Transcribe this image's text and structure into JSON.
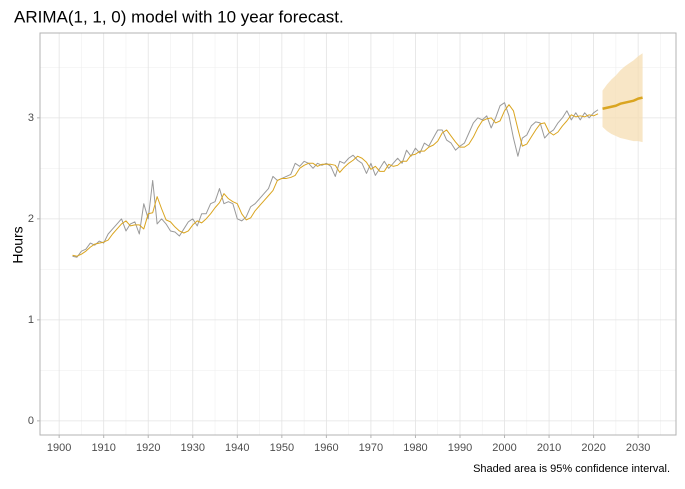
{
  "chart_data": {
    "type": "line",
    "title": "ARIMA(1, 1, 0) model with 10 year forecast.",
    "y_label": "Hours",
    "caption": "Shaded area is 95% confidence interval.",
    "xlim": [
      1895.7,
      2038.5
    ],
    "ylim": [
      -0.14,
      3.84
    ],
    "xticks": [
      1900,
      1910,
      1920,
      1930,
      1940,
      1950,
      1960,
      1970,
      1980,
      1990,
      2000,
      2010,
      2020,
      2030
    ],
    "yticks": [
      0,
      1,
      2,
      3
    ],
    "xminorticks": [
      1905,
      1915,
      1925,
      1935,
      1945,
      1955,
      1965,
      1975,
      1985,
      1995,
      2005,
      2015,
      2025,
      2035
    ],
    "yminorticks": [
      0.5,
      1.5,
      2.5,
      3.5
    ],
    "grid": true,
    "x": [
      1903,
      1904,
      1905,
      1906,
      1907,
      1908,
      1909,
      1910,
      1911,
      1912,
      1913,
      1914,
      1915,
      1916,
      1917,
      1918,
      1919,
      1920,
      1921,
      1922,
      1923,
      1924,
      1925,
      1926,
      1927,
      1928,
      1929,
      1930,
      1931,
      1932,
      1933,
      1934,
      1935,
      1936,
      1937,
      1938,
      1939,
      1940,
      1941,
      1942,
      1943,
      1944,
      1945,
      1946,
      1947,
      1948,
      1949,
      1950,
      1951,
      1952,
      1953,
      1954,
      1955,
      1956,
      1957,
      1958,
      1959,
      1960,
      1961,
      1962,
      1963,
      1964,
      1965,
      1966,
      1967,
      1968,
      1969,
      1970,
      1971,
      1972,
      1973,
      1974,
      1975,
      1976,
      1977,
      1978,
      1979,
      1980,
      1981,
      1982,
      1983,
      1984,
      1985,
      1986,
      1987,
      1988,
      1989,
      1990,
      1991,
      1992,
      1993,
      1994,
      1995,
      1996,
      1997,
      1998,
      1999,
      2000,
      2001,
      2002,
      2003,
      2004,
      2005,
      2006,
      2007,
      2008,
      2009,
      2010,
      2011,
      2012,
      2013,
      2014,
      2015,
      2016,
      2017,
      2018,
      2019,
      2020,
      2021
    ],
    "series": [
      {
        "color": "#9a9a9a",
        "width": 1,
        "values": [
          1.63,
          1.62,
          1.68,
          1.7,
          1.76,
          1.74,
          1.78,
          1.76,
          1.85,
          1.9,
          1.95,
          2.0,
          1.88,
          1.95,
          1.97,
          1.85,
          2.15,
          2.0,
          2.38,
          1.95,
          2.0,
          1.95,
          1.88,
          1.87,
          1.83,
          1.9,
          1.97,
          2.0,
          1.93,
          2.05,
          2.05,
          2.15,
          2.17,
          2.3,
          2.15,
          2.17,
          2.15,
          2.0,
          1.98,
          2.02,
          2.12,
          2.15,
          2.2,
          2.25,
          2.3,
          2.42,
          2.38,
          2.4,
          2.42,
          2.44,
          2.55,
          2.52,
          2.57,
          2.55,
          2.5,
          2.55,
          2.53,
          2.55,
          2.52,
          2.42,
          2.57,
          2.55,
          2.6,
          2.63,
          2.58,
          2.55,
          2.45,
          2.55,
          2.43,
          2.5,
          2.57,
          2.5,
          2.55,
          2.6,
          2.55,
          2.68,
          2.62,
          2.7,
          2.65,
          2.75,
          2.72,
          2.8,
          2.88,
          2.88,
          2.78,
          2.75,
          2.68,
          2.72,
          2.75,
          2.85,
          2.95,
          3.0,
          2.98,
          3.02,
          2.9,
          3.0,
          3.12,
          3.15,
          3.02,
          2.8,
          2.62,
          2.8,
          2.83,
          2.92,
          2.96,
          2.95,
          2.8,
          2.85,
          2.88,
          2.95,
          3.0,
          3.07,
          2.98,
          3.05,
          2.98,
          3.05,
          3.0,
          3.05,
          3.08
        ]
      },
      {
        "color": "#daa520",
        "width": 1,
        "values": [
          1.64,
          1.63,
          1.65,
          1.68,
          1.72,
          1.75,
          1.76,
          1.77,
          1.79,
          1.85,
          1.9,
          1.95,
          1.98,
          1.93,
          1.94,
          1.94,
          1.9,
          2.05,
          2.06,
          2.22,
          2.1,
          1.99,
          1.97,
          1.92,
          1.88,
          1.86,
          1.88,
          1.94,
          1.98,
          1.96,
          2.0,
          2.05,
          2.11,
          2.16,
          2.25,
          2.2,
          2.17,
          2.15,
          2.05,
          1.99,
          2.01,
          2.08,
          2.13,
          2.18,
          2.23,
          2.28,
          2.38,
          2.4,
          2.4,
          2.41,
          2.43,
          2.5,
          2.53,
          2.55,
          2.55,
          2.52,
          2.54,
          2.54,
          2.54,
          2.53,
          2.46,
          2.51,
          2.55,
          2.58,
          2.62,
          2.6,
          2.56,
          2.49,
          2.52,
          2.47,
          2.47,
          2.54,
          2.52,
          2.53,
          2.57,
          2.57,
          2.63,
          2.64,
          2.67,
          2.67,
          2.71,
          2.73,
          2.77,
          2.85,
          2.88,
          2.82,
          2.76,
          2.71,
          2.71,
          2.74,
          2.81,
          2.9,
          2.97,
          2.99,
          3.0,
          2.95,
          2.97,
          3.07,
          3.13,
          3.07,
          2.89,
          2.72,
          2.74,
          2.81,
          2.88,
          2.94,
          2.95,
          2.86,
          2.83,
          2.86,
          2.92,
          2.97,
          3.03,
          3.01,
          3.02,
          3.01,
          3.03,
          3.02,
          3.04
        ]
      }
    ],
    "forecast": {
      "color": "#daa520",
      "width": 2.5,
      "band_color": "#f5deb3",
      "x": [
        2022,
        2023,
        2024,
        2025,
        2026,
        2027,
        2028,
        2029,
        2030,
        2031
      ],
      "values": [
        3.09,
        3.1,
        3.11,
        3.12,
        3.14,
        3.15,
        3.16,
        3.17,
        3.19,
        3.2
      ],
      "lower": [
        2.91,
        2.87,
        2.84,
        2.82,
        2.8,
        2.79,
        2.78,
        2.77,
        2.77,
        2.76
      ],
      "upper": [
        3.27,
        3.33,
        3.38,
        3.42,
        3.47,
        3.51,
        3.54,
        3.57,
        3.61,
        3.64
      ]
    }
  }
}
